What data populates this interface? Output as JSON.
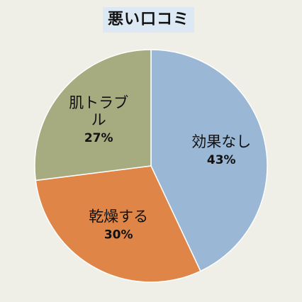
{
  "chart_data": {
    "type": "pie",
    "title": "悪い口コミ",
    "categories": [
      "効果なし",
      "乾燥する",
      "肌トラブル"
    ],
    "values": [
      43,
      30,
      27
    ],
    "value_labels": [
      "43%",
      "30%",
      "27%"
    ],
    "colors": [
      "#9ab7d6",
      "#df8548",
      "#a7ab80"
    ],
    "start_angle_deg": 0,
    "direction": "clockwise",
    "legend": "none"
  }
}
